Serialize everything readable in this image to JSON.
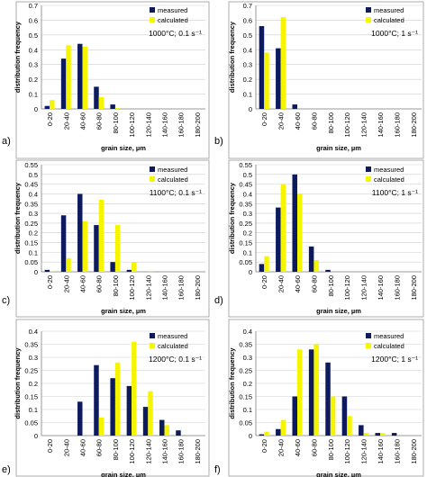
{
  "colors": {
    "measured": "#0d1a5e",
    "calculated": "#f5f500",
    "grid": "#cfcfcf",
    "axis": "#808080",
    "text": "#000000"
  },
  "chart_data": [
    {
      "type": "bar",
      "panel_label": "a)",
      "condition_label": "1000°C; 0.1 s⁻¹",
      "xlabel": "grain size, µm",
      "ylabel": "distribution frequency",
      "ylim": [
        0,
        0.7
      ],
      "yticks": [
        "0",
        "0.1",
        "0.2",
        "0.3",
        "0.4",
        "0.5",
        "0.6",
        "0.7"
      ],
      "categories": [
        "0-20",
        "20-40",
        "40-60",
        "60-80",
        "80-100",
        "100-120",
        "120-140",
        "140-160",
        "160-180",
        "180-200"
      ],
      "legend": "top-right",
      "grid": true,
      "series": [
        {
          "name": "measured",
          "values": [
            0.02,
            0.34,
            0.44,
            0.15,
            0.03,
            0,
            0,
            0,
            0,
            0
          ]
        },
        {
          "name": "calculated",
          "values": [
            0.06,
            0.43,
            0.42,
            0.08,
            0.005,
            0,
            0,
            0,
            0,
            0
          ]
        }
      ]
    },
    {
      "type": "bar",
      "panel_label": "b)",
      "condition_label": "1000°C; 1 s⁻¹",
      "xlabel": "grain size, µm",
      "ylabel": "distribution frequency",
      "ylim": [
        0,
        0.7
      ],
      "yticks": [
        "0",
        "0.1",
        "0.2",
        "0.3",
        "0.4",
        "0.5",
        "0.6",
        "0.7"
      ],
      "categories": [
        "0-20",
        "20-40",
        "40-60",
        "60-80",
        "80-100",
        "100-120",
        "120-140",
        "140-160",
        "160-180",
        "180-200"
      ],
      "legend": "top-right",
      "grid": true,
      "series": [
        {
          "name": "measured",
          "values": [
            0.56,
            0.41,
            0.03,
            0,
            0,
            0,
            0,
            0,
            0,
            0
          ]
        },
        {
          "name": "calculated",
          "values": [
            0.38,
            0.62,
            0,
            0,
            0,
            0,
            0,
            0,
            0,
            0
          ]
        }
      ]
    },
    {
      "type": "bar",
      "panel_label": "c)",
      "condition_label": "1100°C; 0.1 s⁻¹",
      "xlabel": "grain size, µm",
      "ylabel": "distribution frequency",
      "ylim": [
        0,
        0.55
      ],
      "yticks": [
        "0",
        "0.05",
        "0.1",
        "0.15",
        "0.2",
        "0.25",
        "0.3",
        "0.35",
        "0.4",
        "0.45",
        "0.5",
        "0.55"
      ],
      "categories": [
        "0-20",
        "20-40",
        "40-60",
        "60-80",
        "80-100",
        "100-120",
        "120-140",
        "140-160",
        "160-180",
        "180-200"
      ],
      "legend": "top-right",
      "grid": true,
      "series": [
        {
          "name": "measured",
          "values": [
            0.01,
            0.29,
            0.4,
            0.24,
            0.05,
            0.01,
            0,
            0,
            0,
            0
          ]
        },
        {
          "name": "calculated",
          "values": [
            0.005,
            0.07,
            0.26,
            0.37,
            0.24,
            0.05,
            0.005,
            0,
            0,
            0
          ]
        }
      ]
    },
    {
      "type": "bar",
      "panel_label": "d)",
      "condition_label": "1100°C; 1 s⁻¹",
      "xlabel": "grain size, µm",
      "ylabel": "distribution frequency",
      "ylim": [
        0,
        0.55
      ],
      "yticks": [
        "0",
        "0.05",
        "0.1",
        "0.15",
        "0.2",
        "0.25",
        "0.3",
        "0.35",
        "0.4",
        "0.45",
        "0.5",
        "0.55"
      ],
      "categories": [
        "0-20",
        "20-40",
        "40-60",
        "60-80",
        "80-100",
        "100-120",
        "120-140",
        "140-160",
        "160-180",
        "180-200"
      ],
      "legend": "top-right",
      "grid": true,
      "series": [
        {
          "name": "measured",
          "values": [
            0.04,
            0.33,
            0.5,
            0.13,
            0.01,
            0,
            0,
            0,
            0,
            0
          ]
        },
        {
          "name": "calculated",
          "values": [
            0.08,
            0.45,
            0.4,
            0.06,
            0,
            0,
            0,
            0,
            0,
            0
          ]
        }
      ]
    },
    {
      "type": "bar",
      "panel_label": "e)",
      "condition_label": "1200°C; 0.1 s⁻¹",
      "xlabel": "grain size, µm",
      "ylabel": "distribution frequency",
      "ylim": [
        0,
        0.4
      ],
      "yticks": [
        "0",
        "0.05",
        "0.1",
        "0.15",
        "0.2",
        "0.25",
        "0.3",
        "0.35",
        "0.4"
      ],
      "categories": [
        "0-20",
        "20-40",
        "40-60",
        "60-80",
        "80-100",
        "100-120",
        "120-140",
        "140-160",
        "160-180",
        "180-200"
      ],
      "legend": "top-right",
      "grid": true,
      "series": [
        {
          "name": "measured",
          "values": [
            0,
            0,
            0.13,
            0.27,
            0.22,
            0.19,
            0.11,
            0.06,
            0.02,
            0
          ]
        },
        {
          "name": "calculated",
          "values": [
            0,
            0,
            0,
            0.07,
            0.28,
            0.36,
            0.17,
            0.04,
            0,
            0
          ]
        }
      ]
    },
    {
      "type": "bar",
      "panel_label": "f)",
      "condition_label": "1200°C; 1 s⁻¹",
      "xlabel": "grain size, µm",
      "ylabel": "distribution frequency",
      "ylim": [
        0,
        0.4
      ],
      "yticks": [
        "0",
        "0.05",
        "0.1",
        "0.15",
        "0.2",
        "0.25",
        "0.3",
        "0.35",
        "0.4"
      ],
      "categories": [
        "0-20",
        "20-40",
        "40-60",
        "60-80",
        "80-100",
        "100-120",
        "120-140",
        "140-160",
        "160-180",
        "180-200"
      ],
      "legend": "top-right",
      "grid": true,
      "series": [
        {
          "name": "measured",
          "values": [
            0.005,
            0.025,
            0.15,
            0.33,
            0.28,
            0.15,
            0.04,
            0.01,
            0.01,
            0
          ]
        },
        {
          "name": "calculated",
          "values": [
            0.015,
            0.06,
            0.33,
            0.35,
            0.15,
            0.075,
            0.01,
            0.01,
            0,
            0
          ]
        }
      ]
    }
  ]
}
